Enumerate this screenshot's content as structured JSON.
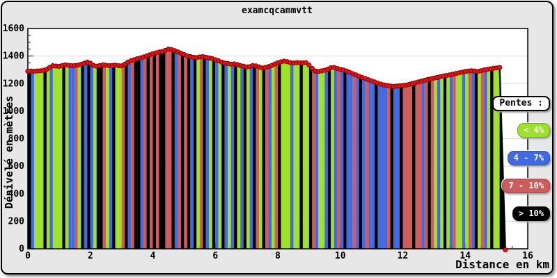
{
  "chart_data": {
    "type": "area",
    "title": "examcqcammvtt",
    "xlabel": "Distance en km",
    "ylabel": "Dénivelé en mètres",
    "xlim": [
      0,
      16
    ],
    "ylim": [
      0,
      1600
    ],
    "x_ticks": [
      0,
      2,
      4,
      6,
      8,
      10,
      12,
      14,
      16
    ],
    "y_ticks": [
      0,
      200,
      400,
      600,
      800,
      1000,
      1200,
      1400,
      1600
    ],
    "x_minor_step": 0.5,
    "y_minor_step": 50,
    "grid": "horizontal",
    "x_start": 0,
    "x_step": 0.1,
    "elevations": [
      1290,
      1291,
      1290,
      1291,
      1293,
      1296,
      1303,
      1318,
      1330,
      1327,
      1325,
      1331,
      1336,
      1333,
      1330,
      1331,
      1334,
      1340,
      1347,
      1356,
      1348,
      1332,
      1326,
      1331,
      1336,
      1333,
      1330,
      1332,
      1334,
      1330,
      1329,
      1341,
      1356,
      1366,
      1373,
      1380,
      1386,
      1393,
      1401,
      1409,
      1416,
      1423,
      1429,
      1433,
      1441,
      1450,
      1446,
      1439,
      1430,
      1421,
      1411,
      1401,
      1396,
      1391,
      1389,
      1393,
      1396,
      1391,
      1386,
      1381,
      1373,
      1366,
      1356,
      1349,
      1346,
      1341,
      1343,
      1338,
      1331,
      1326,
      1321,
      1323,
      1331,
      1328,
      1321,
      1313,
      1317,
      1323,
      1331,
      1342,
      1351,
      1358,
      1363,
      1359,
      1352,
      1349,
      1352,
      1351,
      1350,
      1352,
      1335,
      1310,
      1291,
      1288,
      1292,
      1297,
      1305,
      1315,
      1317,
      1310,
      1303,
      1299,
      1291,
      1281,
      1272,
      1263,
      1253,
      1244,
      1237,
      1228,
      1220,
      1212,
      1203,
      1196,
      1190,
      1186,
      1182,
      1179,
      1181,
      1184,
      1186,
      1189,
      1194,
      1200,
      1206,
      1212,
      1218,
      1224,
      1230,
      1235,
      1240,
      1245,
      1250,
      1255,
      1259,
      1263,
      1268,
      1273,
      1278,
      1283,
      1288,
      1291,
      1293,
      1291,
      1288,
      1293,
      1299,
      1303,
      1307,
      1311,
      1314,
      1317
    ],
    "end_point": [
      15.28,
      0
    ],
    "slope_classes": "kbgggkgbgggkgbbrgkbkbgkkrgbkggrkbrkkbrkrkrkkrrkbrkrkbkgrkbgkbgkbgbkgbkgbkrgkrbgrkgggbggkggkrbggbkgbrbkbbrbkbrbbkbbbrkbbkrrrkrrbrkrgbgkgbrggbgrbkgrbgkggk",
    "colors": {
      "lt4": "#9fe02c",
      "p4_7": "#4169e1",
      "p7_10": "#cd5c5c",
      "gt10": "#000000",
      "line": "#000000",
      "marker_fill": "#e41414",
      "marker_edge": "#7a0000",
      "plot_bg": "#ffffff",
      "figure_bg": "#e7e7e7",
      "grid": "#d9d9d9"
    },
    "legend": {
      "title": "Pentes :",
      "items": [
        {
          "label": "< 4%",
          "key": "lt4",
          "color": "#9fe02c",
          "text_color": "#ffffff"
        },
        {
          "label": "4 - 7%",
          "key": "p4_7",
          "color": "#4169e1",
          "text_color": "#ffffff"
        },
        {
          "label": "7 - 10%",
          "key": "p7_10",
          "color": "#cd5c5c",
          "text_color": "#ffffff"
        },
        {
          "label": "> 10%",
          "key": "gt10",
          "color": "#000000",
          "text_color": "#ffffff"
        }
      ]
    }
  }
}
